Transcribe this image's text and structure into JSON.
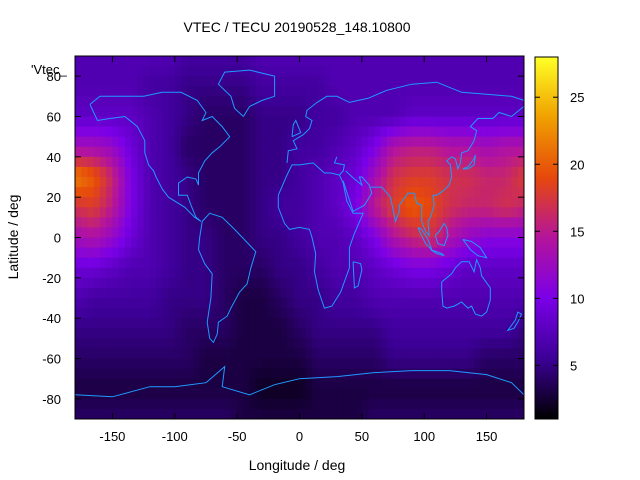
{
  "chart_data": {
    "type": "heatmap",
    "title": "VTEC / TECU 20190528_148.10800",
    "xlabel": "Longitude / deg",
    "ylabel": "Latitude / deg",
    "legend_label": "'Vtec_",
    "xlim": [
      -180,
      180
    ],
    "ylim": [
      -90,
      90
    ],
    "x_ticks": [
      -150,
      -100,
      -50,
      0,
      50,
      100,
      150
    ],
    "y_ticks": [
      -80,
      -60,
      -40,
      -20,
      0,
      20,
      40,
      60,
      80
    ],
    "colorbar": {
      "min": 1,
      "max": 28,
      "ticks": [
        5,
        10,
        15,
        20,
        25
      ]
    },
    "grid": false,
    "color_map": [
      "#000000",
      "#3c0096",
      "#7a00e8",
      "#b4149c",
      "#e6480c",
      "#f0a000",
      "#ffff26"
    ],
    "overlay": "coastlines",
    "overlay_color": "#1e9bff",
    "grid_spec": {
      "lon_start": -180,
      "lon_step": 15,
      "lat_start": 90,
      "lat_step": -15,
      "note_rows": "rows run from lat 90 (top) to lat -90 (bottom), columns from lon -180 to 180"
    },
    "values": [
      [
        7,
        7,
        7,
        7,
        7,
        7,
        6,
        6,
        6,
        6,
        7,
        7,
        7,
        7,
        7,
        7,
        7,
        7,
        7,
        7,
        7,
        7,
        7,
        7,
        7
      ],
      [
        7,
        7,
        7,
        7,
        6,
        6,
        5,
        5,
        5,
        5,
        6,
        6,
        6,
        6,
        7,
        7,
        7,
        7,
        7,
        7,
        7,
        7,
        7,
        7,
        7
      ],
      [
        8,
        8,
        8,
        8,
        7,
        6,
        5,
        4,
        4,
        4,
        5,
        5,
        5,
        6,
        6,
        7,
        7,
        7,
        8,
        8,
        8,
        8,
        8,
        8,
        8
      ],
      [
        13,
        13,
        12,
        9,
        7,
        6,
        4,
        4,
        4,
        4,
        5,
        5,
        6,
        6,
        7,
        8,
        10,
        14,
        15,
        15,
        14,
        14,
        13,
        14,
        14
      ],
      [
        22,
        20,
        16,
        10,
        7,
        6,
        5,
        4,
        4,
        4,
        5,
        5,
        6,
        7,
        8,
        9,
        13,
        17,
        18,
        18,
        17,
        17,
        16,
        16,
        18
      ],
      [
        17,
        18,
        15,
        10,
        7,
        6,
        5,
        4,
        4,
        4,
        5,
        6,
        6,
        7,
        8,
        10,
        15,
        18,
        20,
        19,
        17,
        16,
        16,
        17,
        16
      ],
      [
        13,
        14,
        12,
        9,
        7,
        6,
        5,
        5,
        4,
        4,
        5,
        5,
        6,
        7,
        7,
        8,
        10,
        14,
        16,
        17,
        14,
        12,
        11,
        11,
        11
      ],
      [
        9,
        9,
        8,
        7,
        7,
        6,
        5,
        5,
        4,
        4,
        4,
        5,
        5,
        6,
        7,
        7,
        8,
        9,
        10,
        10,
        9,
        8,
        8,
        8,
        8
      ],
      [
        7,
        6,
        6,
        6,
        6,
        5,
        5,
        5,
        4,
        3,
        3,
        4,
        5,
        5,
        6,
        6,
        7,
        7,
        7,
        7,
        7,
        7,
        7,
        7,
        7
      ],
      [
        5,
        5,
        5,
        5,
        5,
        5,
        4,
        4,
        4,
        3,
        3,
        3,
        4,
        5,
        5,
        5,
        5,
        6,
        6,
        6,
        6,
        6,
        6,
        6,
        5
      ],
      [
        4,
        4,
        4,
        4,
        4,
        4,
        4,
        3,
        3,
        3,
        3,
        3,
        3,
        4,
        4,
        4,
        4,
        5,
        5,
        5,
        5,
        5,
        4,
        4,
        4
      ],
      [
        3,
        3,
        3,
        3,
        3,
        3,
        3,
        3,
        3,
        3,
        2,
        2,
        2,
        3,
        3,
        3,
        3,
        3,
        3,
        3,
        3,
        3,
        3,
        3,
        3
      ],
      [
        4,
        4,
        4,
        4,
        4,
        4,
        4,
        4,
        4,
        3,
        3,
        3,
        3,
        3,
        3,
        3,
        4,
        4,
        4,
        4,
        4,
        4,
        4,
        4,
        4
      ]
    ]
  }
}
